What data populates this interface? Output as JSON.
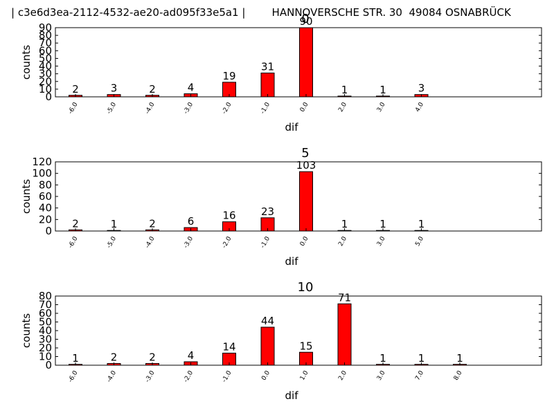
{
  "header": {
    "text": "| c3e6d3ea-2112-4532-ae20-ad095f33e5a1 |        HANNOVERSCHE STR. 30  49084 OSNABRÜCK"
  },
  "chart_data": [
    {
      "type": "bar",
      "title": "0",
      "xlabel": "dif",
      "ylabel": "counts",
      "categories": [
        "-6.0",
        "-5.0",
        "-4.0",
        "-3.0",
        "-2.0",
        "-1.0",
        "0.0",
        "2.0",
        "3.0",
        "4.0"
      ],
      "values": [
        2,
        3,
        2,
        4,
        19,
        31,
        90,
        1,
        1,
        3
      ],
      "yticks": [
        0,
        10,
        20,
        30,
        40,
        50,
        60,
        70,
        80,
        90
      ],
      "ylim": [
        0,
        90
      ],
      "bar_color": "#ff0000",
      "grid": false
    },
    {
      "type": "bar",
      "title": "5",
      "xlabel": "dif",
      "ylabel": "counts",
      "categories": [
        "-6.0",
        "-5.0",
        "-4.0",
        "-3.0",
        "-2.0",
        "-1.0",
        "0.0",
        "2.0",
        "3.0",
        "5.0"
      ],
      "values": [
        2,
        1,
        2,
        6,
        16,
        23,
        103,
        1,
        1,
        1
      ],
      "yticks": [
        0,
        20,
        40,
        60,
        80,
        100,
        120
      ],
      "ylim": [
        0,
        120
      ],
      "bar_color": "#ff0000",
      "grid": false
    },
    {
      "type": "bar",
      "title": "10",
      "xlabel": "dif",
      "ylabel": "counts",
      "categories": [
        "-6.0",
        "-4.0",
        "-3.0",
        "-2.0",
        "-1.0",
        "0.0",
        "1.0",
        "2.0",
        "3.0",
        "7.0",
        "8.0"
      ],
      "values": [
        1,
        2,
        2,
        4,
        14,
        44,
        15,
        71,
        1,
        1,
        1
      ],
      "yticks": [
        0,
        10,
        20,
        30,
        40,
        50,
        60,
        70,
        80
      ],
      "ylim": [
        0,
        80
      ],
      "bar_color": "#ff0000",
      "grid": false
    }
  ]
}
